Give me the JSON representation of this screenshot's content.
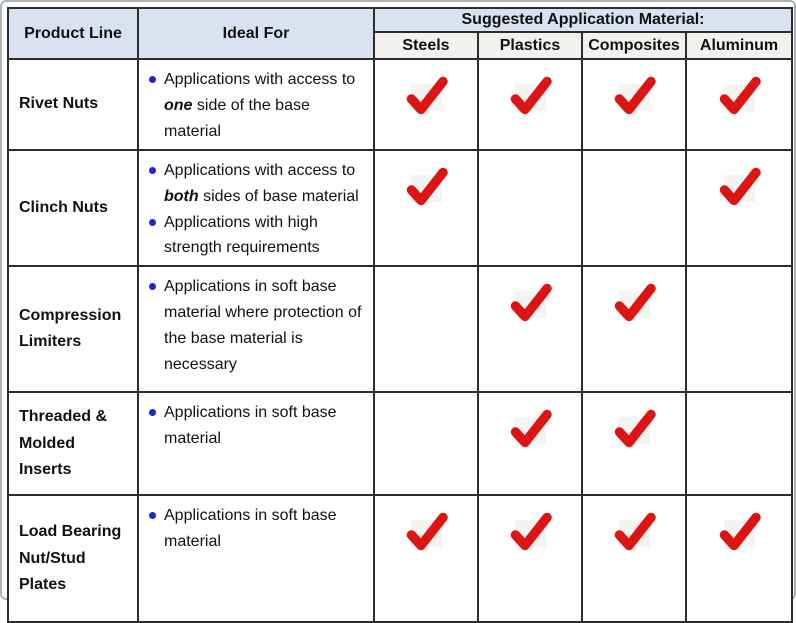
{
  "colors": {
    "header_blue": "#d9e2f0",
    "subheader_bg": "#f2f1ed",
    "border": "#2d2d2d",
    "check_red": "#dd1414",
    "check_box_bg": "#f4f4f3",
    "bullet_blue": "#2424cc",
    "text": "#111111"
  },
  "icons": {
    "check": "checkmark-icon",
    "bullet": "bullet-dot-icon"
  },
  "chart_data": {
    "type": "table",
    "group_header": "Suggested Application Material:",
    "columns": {
      "product_line": "Product Line",
      "ideal_for": "Ideal For",
      "materials": [
        "Steels",
        "Plastics",
        "Composites",
        "Aluminum"
      ]
    },
    "rows": [
      {
        "product": "Rivet Nuts",
        "bullets": [
          [
            {
              "t": "Applications with access to "
            },
            {
              "t": "one",
              "em": true
            },
            {
              "t": " side of the base material"
            }
          ]
        ],
        "checks": [
          true,
          true,
          true,
          true
        ]
      },
      {
        "product": "Clinch Nuts",
        "bullets": [
          [
            {
              "t": "Applications with access to "
            },
            {
              "t": "both",
              "em": true
            },
            {
              "t": " sides of base material"
            }
          ],
          [
            {
              "t": "Applications with high strength requirements"
            }
          ]
        ],
        "checks": [
          true,
          false,
          false,
          true
        ]
      },
      {
        "product": "Compression Limiters",
        "bullets": [
          [
            {
              "t": "Applications in soft base material where protection of the base material is necessary"
            }
          ]
        ],
        "checks": [
          false,
          true,
          true,
          false
        ]
      },
      {
        "product": "Threaded & Molded Inserts",
        "bullets": [
          [
            {
              "t": "Applications in soft base material"
            }
          ]
        ],
        "checks": [
          false,
          true,
          true,
          false
        ]
      },
      {
        "product": "Load Bearing Nut/Stud Plates",
        "bullets": [
          [
            {
              "t": "Applications in soft base material"
            }
          ]
        ],
        "checks": [
          true,
          true,
          true,
          true
        ]
      }
    ]
  }
}
